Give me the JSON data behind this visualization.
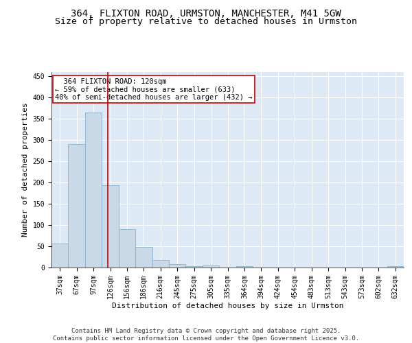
{
  "title_line1": "364, FLIXTON ROAD, URMSTON, MANCHESTER, M41 5GW",
  "title_line2": "Size of property relative to detached houses in Urmston",
  "xlabel": "Distribution of detached houses by size in Urmston",
  "ylabel": "Number of detached properties",
  "bar_color": "#c9d9e8",
  "bar_edge_color": "#7aaac8",
  "background_color": "#ddeaf5",
  "grid_color": "#ffffff",
  "categories": [
    "37sqm",
    "67sqm",
    "97sqm",
    "126sqm",
    "156sqm",
    "186sqm",
    "216sqm",
    "245sqm",
    "275sqm",
    "305sqm",
    "335sqm",
    "364sqm",
    "394sqm",
    "424sqm",
    "454sqm",
    "483sqm",
    "513sqm",
    "543sqm",
    "573sqm",
    "602sqm",
    "632sqm"
  ],
  "values": [
    57,
    290,
    365,
    193,
    91,
    49,
    18,
    8,
    4,
    5,
    0,
    4,
    0,
    0,
    0,
    0,
    0,
    0,
    0,
    0,
    4
  ],
  "ylim": [
    0,
    460
  ],
  "yticks": [
    0,
    50,
    100,
    150,
    200,
    250,
    300,
    350,
    400,
    450
  ],
  "vline_x": 2.87,
  "vline_color": "#cc0000",
  "annotation_text": "  364 FLIXTON ROAD: 120sqm\n← 59% of detached houses are smaller (633)\n40% of semi-detached houses are larger (432) →",
  "annotation_box_color": "#ffffff",
  "annotation_box_edge_color": "#cc0000",
  "footer_text": "Contains HM Land Registry data © Crown copyright and database right 2025.\nContains public sector information licensed under the Open Government Licence v3.0.",
  "title_fontsize": 10,
  "subtitle_fontsize": 9.5,
  "annotation_fontsize": 7.5,
  "footer_fontsize": 6.5,
  "axis_label_fontsize": 8,
  "tick_fontsize": 7
}
